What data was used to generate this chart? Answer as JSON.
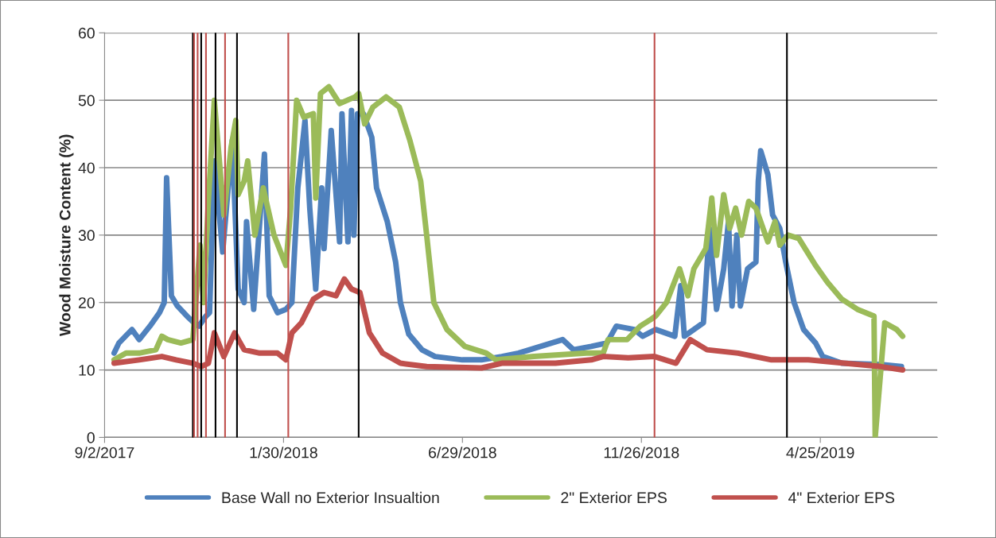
{
  "chart_data": {
    "type": "line",
    "ylabel": "Wood Moisture Content (%)",
    "ylim": [
      0,
      60
    ],
    "yticks": [
      0,
      10,
      20,
      30,
      40,
      50,
      60
    ],
    "xlim": [
      "2017-09-02",
      "2019-08-01"
    ],
    "xticks": [
      {
        "value": "2017-09-02",
        "label": "9/2/2017"
      },
      {
        "value": "2018-01-30",
        "label": "1/30/2018"
      },
      {
        "value": "2018-06-29",
        "label": "6/29/2018"
      },
      {
        "value": "2018-11-26",
        "label": "11/26/2018"
      },
      {
        "value": "2019-04-25",
        "label": "4/25/2019"
      }
    ],
    "grid": "y",
    "legend": "bottom",
    "line_style": "solid",
    "series": [
      {
        "name": "Base Wall no Exterior Insualtion",
        "color": "#4f81bd",
        "x": [
          "2017-09-10",
          "2017-09-14",
          "2017-09-25",
          "2017-10-01",
          "2017-10-10",
          "2017-10-18",
          "2017-10-22",
          "2017-10-24",
          "2017-10-28",
          "2017-11-02",
          "2017-11-10",
          "2017-11-16",
          "2017-11-20",
          "2017-11-26",
          "2017-11-29",
          "2017-12-03",
          "2017-12-10",
          "2017-12-18",
          "2017-12-23",
          "2017-12-28",
          "2017-12-30",
          "2018-01-05",
          "2018-01-14",
          "2018-01-18",
          "2018-01-25",
          "2018-02-01",
          "2018-02-06",
          "2018-02-11",
          "2018-02-17",
          "2018-02-21",
          "2018-02-26",
          "2018-03-03",
          "2018-03-05",
          "2018-03-11",
          "2018-03-18",
          "2018-03-20",
          "2018-03-25",
          "2018-03-28",
          "2018-03-30",
          "2018-04-02",
          "2018-04-07",
          "2018-04-14",
          "2018-04-18",
          "2018-04-27",
          "2018-05-04",
          "2018-05-08",
          "2018-05-15",
          "2018-05-26",
          "2018-06-06",
          "2018-06-29",
          "2018-07-15",
          "2018-08-01",
          "2018-08-15",
          "2018-09-21",
          "2018-09-30",
          "2018-10-15",
          "2018-10-28",
          "2018-11-05",
          "2018-11-20",
          "2018-11-27",
          "2018-12-08",
          "2018-12-24",
          "2018-12-29",
          "2019-01-01",
          "2019-01-17",
          "2019-01-22",
          "2019-01-28",
          "2019-02-03",
          "2019-02-07",
          "2019-02-10",
          "2019-02-14",
          "2019-02-17",
          "2019-02-23",
          "2019-03-02",
          "2019-03-04",
          "2019-03-06",
          "2019-03-12",
          "2019-03-16",
          "2019-03-22",
          "2019-03-27",
          "2019-04-03",
          "2019-04-11",
          "2019-04-21",
          "2019-04-27",
          "2019-05-13",
          "2019-06-15",
          "2019-07-02"
        ],
        "values": [
          12.5,
          14,
          16,
          14.5,
          16.5,
          18.5,
          20,
          38.5,
          21,
          19.5,
          18,
          17,
          16.5,
          18,
          18.5,
          41,
          27.5,
          44,
          22,
          20,
          32,
          19,
          42,
          21,
          18.5,
          19,
          20,
          37,
          47,
          34,
          22,
          37,
          28,
          45.5,
          29,
          48,
          29,
          48.5,
          30,
          48,
          48,
          44.5,
          37,
          32,
          26,
          20,
          15.3,
          13,
          12,
          11.5,
          11.5,
          12,
          12.5,
          14.5,
          13,
          13.5,
          14,
          16.5,
          16,
          15,
          16,
          15,
          22.5,
          15,
          17,
          31,
          19,
          25,
          32,
          19.5,
          30,
          19.5,
          25,
          26,
          38,
          42.5,
          39,
          33,
          31,
          26,
          20,
          16,
          14,
          12,
          11,
          10.8,
          10.5
        ]
      },
      {
        "name": "2\" Exterior EPS",
        "color": "#9bbb59",
        "x": [
          "2017-09-10",
          "2017-09-20",
          "2017-10-01",
          "2017-10-15",
          "2017-10-20",
          "2017-10-25",
          "2017-11-05",
          "2017-11-15",
          "2017-11-21",
          "2017-11-24",
          "2017-11-28",
          "2017-12-03",
          "2017-12-11",
          "2017-12-17",
          "2017-12-21",
          "2017-12-23",
          "2017-12-28",
          "2017-12-31",
          "2018-01-06",
          "2018-01-13",
          "2018-01-22",
          "2018-02-01",
          "2018-02-05",
          "2018-02-10",
          "2018-02-16",
          "2018-02-24",
          "2018-02-26",
          "2018-03-02",
          "2018-03-09",
          "2018-03-18",
          "2018-03-31",
          "2018-04-03",
          "2018-04-08",
          "2018-04-15",
          "2018-04-26",
          "2018-05-07",
          "2018-05-16",
          "2018-05-25",
          "2018-05-30",
          "2018-06-05",
          "2018-06-16",
          "2018-07-01",
          "2018-07-19",
          "2018-07-27",
          "2018-08-28",
          "2018-10-11",
          "2018-10-25",
          "2018-10-29",
          "2018-11-14",
          "2018-11-25",
          "2018-12-04",
          "2018-12-08",
          "2018-12-17",
          "2018-12-28",
          "2019-01-04",
          "2019-01-09",
          "2019-01-19",
          "2019-01-24",
          "2019-01-28",
          "2019-02-03",
          "2019-02-08",
          "2019-02-13",
          "2019-02-18",
          "2019-02-24",
          "2019-03-02",
          "2019-03-12",
          "2019-03-18",
          "2019-03-22",
          "2019-03-29",
          "2019-04-07",
          "2019-04-21",
          "2019-05-01",
          "2019-05-13",
          "2019-05-26",
          "2019-06-09",
          "2019-06-10",
          "2019-06-18",
          "2019-06-28",
          "2019-07-03"
        ],
        "values": [
          11.5,
          12.5,
          12.5,
          13,
          15,
          14.5,
          14,
          14.5,
          28.5,
          20,
          35,
          50,
          33,
          43,
          47,
          36,
          38,
          41,
          30,
          37,
          30,
          25.5,
          34,
          50,
          47.5,
          48,
          35.5,
          51,
          52,
          49.5,
          50.5,
          51,
          46.5,
          49,
          50.5,
          49,
          44,
          38,
          30,
          20,
          16,
          13.5,
          12.5,
          11.5,
          12,
          12.5,
          12.5,
          14.5,
          14.5,
          16.5,
          17.5,
          18,
          20,
          25,
          21,
          25,
          28,
          35.5,
          27,
          36,
          31,
          34,
          30,
          35,
          34,
          29,
          32,
          28.5,
          30,
          29.5,
          25.5,
          23,
          20.5,
          19,
          18,
          0,
          17,
          16,
          15
        ]
      },
      {
        "name": "4\" Exterior EPS",
        "color": "#c0504d",
        "x": [
          "2017-09-10",
          "2017-10-01",
          "2017-10-20",
          "2017-11-01",
          "2017-11-15",
          "2017-11-22",
          "2017-11-28",
          "2017-12-03",
          "2017-12-11",
          "2017-12-20",
          "2017-12-28",
          "2018-01-10",
          "2018-01-25",
          "2018-02-01",
          "2018-02-06",
          "2018-02-14",
          "2018-02-24",
          "2018-03-05",
          "2018-03-15",
          "2018-03-22",
          "2018-03-28",
          "2018-04-04",
          "2018-04-12",
          "2018-04-23",
          "2018-05-08",
          "2018-05-30",
          "2018-07-15",
          "2018-08-01",
          "2018-09-15",
          "2018-10-15",
          "2018-10-25",
          "2018-11-15",
          "2018-12-07",
          "2018-12-25",
          "2019-01-06",
          "2019-01-20",
          "2019-02-15",
          "2019-03-15",
          "2019-04-15",
          "2019-05-15",
          "2019-06-15",
          "2019-07-03"
        ],
        "values": [
          11,
          11.5,
          12,
          11.5,
          11,
          10.5,
          11,
          15.5,
          12,
          15.5,
          13,
          12.5,
          12.5,
          11.5,
          15.5,
          17,
          20.5,
          21.5,
          21,
          23.5,
          22,
          21.5,
          15.5,
          12.5,
          11,
          10.5,
          10.3,
          11,
          11,
          11.5,
          12,
          11.8,
          12,
          11,
          14.5,
          13,
          12.5,
          11.5,
          11.5,
          11,
          10.5,
          10
        ]
      }
    ],
    "ref_lines": [
      {
        "axis": "x",
        "value": "2017-11-15",
        "color": "#000000"
      },
      {
        "axis": "x",
        "value": "2017-11-16",
        "color": "#c0504d"
      },
      {
        "axis": "x",
        "value": "2017-11-19",
        "color": "#c0504d"
      },
      {
        "axis": "x",
        "value": "2017-11-22",
        "color": "#000000"
      },
      {
        "axis": "x",
        "value": "2017-11-26",
        "color": "#c0504d"
      },
      {
        "axis": "x",
        "value": "2017-12-04",
        "color": "#000000"
      },
      {
        "axis": "x",
        "value": "2017-12-12",
        "color": "#c0504d"
      },
      {
        "axis": "x",
        "value": "2017-12-22",
        "color": "#000000"
      },
      {
        "axis": "x",
        "value": "2018-02-03",
        "color": "#c0504d"
      },
      {
        "axis": "x",
        "value": "2018-04-03",
        "color": "#000000"
      },
      {
        "axis": "x",
        "value": "2018-12-07",
        "color": "#c0504d"
      },
      {
        "axis": "x",
        "value": "2019-03-28",
        "color": "#000000"
      }
    ]
  }
}
